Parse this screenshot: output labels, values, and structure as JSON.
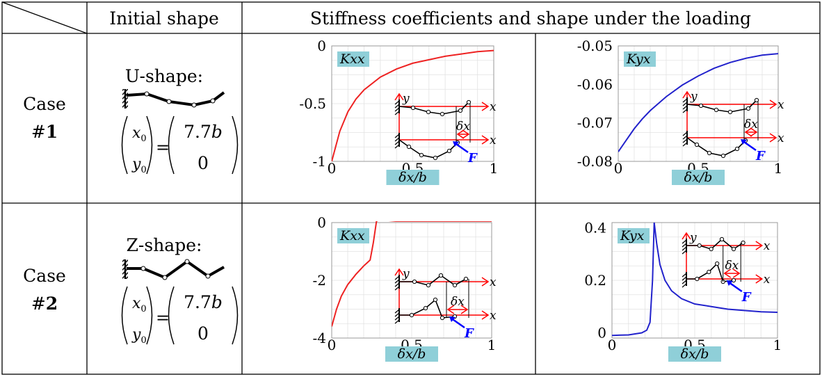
{
  "header": {
    "col_initial": "Initial shape",
    "col_stiffness": "Stiffness coefficients and shape under the loading"
  },
  "cases": [
    {
      "label_line1": "Case",
      "label_line2_prefix": "#",
      "label_line2_num": "1",
      "shape_name": "U-shape:",
      "eq": {
        "x": "x",
        "y": "y",
        "sub": "0",
        "val_top": "7.7",
        "val_top_var": "b",
        "val_bottom": "0",
        "eq_sign": "="
      }
    },
    {
      "label_line1": "Case",
      "label_line2_prefix": "#",
      "label_line2_num": "2",
      "shape_name": "Z-shape:",
      "eq": {
        "x": "x",
        "y": "y",
        "sub": "0",
        "val_top": "7.7",
        "val_top_var": "b",
        "val_bottom": "0",
        "eq_sign": "="
      }
    }
  ],
  "inset_labels": {
    "y": "y",
    "x": "x",
    "dx": "δx",
    "F": "F"
  },
  "colors": {
    "kxx_curve": "#ee2222",
    "kyx_curve": "#2222cc",
    "badge": "#8fcfd8",
    "frame_red": "#ff0000",
    "force_blue": "#0000ff"
  },
  "chart_data": [
    {
      "type": "line",
      "title": "Kxx",
      "xlabel": "δx/b",
      "ylabel": "",
      "xlim": [
        0,
        1
      ],
      "ylim": [
        -1,
        0
      ],
      "xticks": [
        "0",
        "0.5",
        "1"
      ],
      "yticks": [
        "0",
        "-0.5",
        "-1"
      ],
      "series": [
        {
          "x": [
            0,
            0.05,
            0.1,
            0.15,
            0.2,
            0.3,
            0.4,
            0.5,
            0.6,
            0.7,
            0.8,
            0.9,
            1.0
          ],
          "y": [
            -1,
            -0.74,
            -0.57,
            -0.46,
            -0.38,
            -0.27,
            -0.2,
            -0.15,
            -0.12,
            -0.09,
            -0.07,
            -0.05,
            -0.04
          ]
        }
      ]
    },
    {
      "type": "line",
      "title": "Kyx",
      "xlabel": "δx/b",
      "ylabel": "",
      "xlim": [
        0,
        1
      ],
      "ylim": [
        -0.08,
        -0.05
      ],
      "xticks": [
        "0",
        "0.5",
        "1"
      ],
      "yticks": [
        "-0.05",
        "-0.06",
        "-0.07",
        "-0.08"
      ],
      "series": [
        {
          "x": [
            0,
            0.05,
            0.1,
            0.15,
            0.2,
            0.3,
            0.4,
            0.5,
            0.6,
            0.7,
            0.8,
            0.9,
            1.0
          ],
          "y": [
            -0.0775,
            -0.0745,
            -0.0715,
            -0.069,
            -0.0668,
            -0.0632,
            -0.0602,
            -0.0578,
            -0.0558,
            -0.0543,
            -0.0532,
            -0.0524,
            -0.052
          ]
        }
      ]
    },
    {
      "type": "line",
      "title": "Kxx",
      "xlabel": "δx/b",
      "ylabel": "",
      "xlim": [
        0,
        1
      ],
      "ylim": [
        -4,
        0
      ],
      "xticks": [
        "0",
        "0.5",
        "1"
      ],
      "yticks": [
        "0",
        "-2",
        "-4"
      ],
      "series": [
        {
          "x": [
            0,
            0.03,
            0.06,
            0.1,
            0.15,
            0.2,
            0.22,
            0.24,
            0.26,
            0.28,
            0.3,
            0.4,
            0.6,
            0.8,
            1.0
          ],
          "y": [
            -3.6,
            -3.0,
            -2.55,
            -2.15,
            -1.8,
            -1.5,
            -1.4,
            -1.3,
            -0.7,
            0.05,
            0.1,
            0.05,
            0.05,
            0.05,
            0.05
          ]
        }
      ]
    },
    {
      "type": "line",
      "title": "Kyx",
      "xlabel": "δx/b",
      "ylabel": "",
      "xlim": [
        0,
        1
      ],
      "ylim": [
        -0.02,
        0.42
      ],
      "xticks": [
        "0",
        "0.5",
        "1"
      ],
      "yticks": [
        "0.4",
        "0.2",
        "0"
      ],
      "series": [
        {
          "x": [
            0,
            0.1,
            0.18,
            0.21,
            0.23,
            0.245,
            0.255,
            0.27,
            0.29,
            0.32,
            0.36,
            0.42,
            0.5,
            0.6,
            0.7,
            0.8,
            0.9,
            1.0
          ],
          "y": [
            -0.01,
            -0.008,
            0.0,
            0.01,
            0.04,
            0.2,
            0.42,
            0.34,
            0.26,
            0.2,
            0.16,
            0.13,
            0.11,
            0.1,
            0.09,
            0.085,
            0.08,
            0.078
          ]
        }
      ]
    }
  ]
}
